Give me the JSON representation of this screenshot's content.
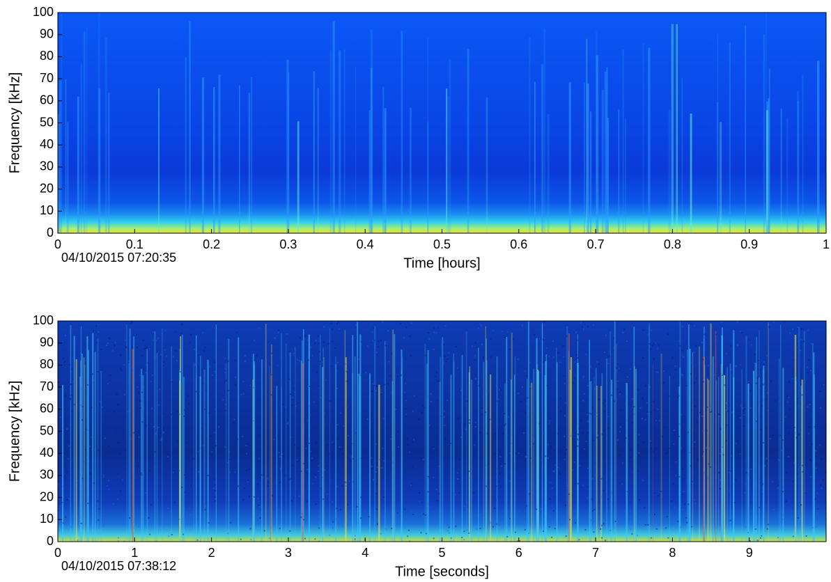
{
  "chart_data": [
    {
      "type": "spectrogram",
      "xlabel": "Time [hours]",
      "ylabel": "Frequency [kHz]",
      "annotation": "04/10/2015 07:20:35",
      "xlim": [
        0,
        1
      ],
      "ylim": [
        0,
        100
      ],
      "xticks": [
        0,
        0.1,
        0.2,
        0.3,
        0.4,
        0.5,
        0.6,
        0.7,
        0.8,
        0.9,
        1
      ],
      "yticks": [
        0,
        10,
        20,
        30,
        40,
        50,
        60,
        70,
        80,
        90,
        100
      ]
    },
    {
      "type": "spectrogram",
      "xlabel": "Time [seconds]",
      "ylabel": "Frequency [kHz]",
      "annotation": "04/10/2015 07:38:12",
      "xlim": [
        0,
        10
      ],
      "ylim": [
        0,
        100
      ],
      "xticks": [
        0,
        1,
        2,
        3,
        4,
        5,
        6,
        7,
        8,
        9
      ],
      "yticks": [
        0,
        10,
        20,
        30,
        40,
        50,
        60,
        70,
        80,
        90,
        100
      ]
    }
  ]
}
